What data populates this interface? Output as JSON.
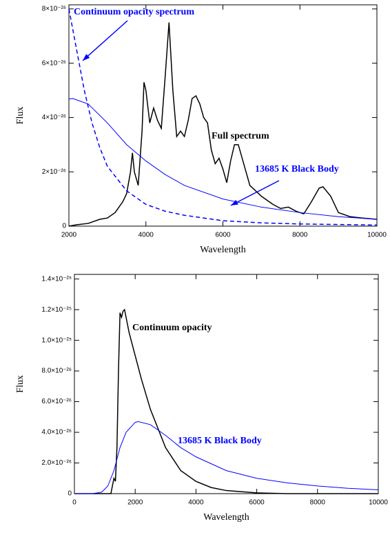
{
  "chart_data": [
    {
      "type": "line",
      "xlabel": "Wavelength",
      "ylabel": "Flux",
      "xlim": [
        2000,
        10000
      ],
      "xticks": [
        2000,
        4000,
        6000,
        8000,
        10000
      ],
      "ylim": [
        0,
        8.15e-26
      ],
      "yticks": [
        0,
        {
          "value": 2e-26,
          "label": "2×10⁻²⁶"
        },
        {
          "value": 4e-26,
          "label": "4×10⁻²⁶"
        },
        {
          "value": 6e-26,
          "label": "6×10⁻²⁶"
        },
        {
          "value": 8e-26,
          "label": "8×10⁻²⁶"
        }
      ],
      "series": [
        {
          "color": "#000000",
          "width": 1.5,
          "dash": false,
          "x": [
            2000,
            2200,
            2500,
            2800,
            3000,
            3200,
            3400,
            3500,
            3600,
            3650,
            3700,
            3800,
            3900,
            3950,
            4000,
            4100,
            4200,
            4300,
            4400,
            4500,
            4600,
            4700,
            4800,
            4900,
            5000,
            5100,
            5200,
            5300,
            5400,
            5500,
            5600,
            5700,
            5800,
            5900,
            6000,
            6100,
            6200,
            6300,
            6400,
            6500,
            6700,
            7000,
            7300,
            7500,
            7700,
            7900,
            8100,
            8300,
            8500,
            8600,
            8800,
            9000,
            9300,
            9600,
            10000
          ],
          "values": [
            0,
            5e-28,
            1e-27,
            2.5e-27,
            3e-27,
            5e-27,
            9e-27,
            1.2e-26,
            2e-26,
            2.7e-26,
            2e-26,
            1.5e-26,
            3.5e-26,
            5.3e-26,
            5e-26,
            3.8e-26,
            4.35e-26,
            3.9e-26,
            3.6e-26,
            5.5e-26,
            7.5e-26,
            5e-26,
            3.3e-26,
            3.5e-26,
            3.3e-26,
            3.9e-26,
            4.7e-26,
            4.8e-26,
            4.5e-26,
            4e-26,
            3.8e-26,
            2.8e-26,
            2.3e-26,
            2.5e-26,
            2.1e-26,
            1.6e-26,
            2.4e-26,
            3e-26,
            3e-26,
            2.5e-26,
            1.5e-26,
            1.1e-26,
            8e-27,
            6.5e-27,
            7e-27,
            5.5e-27,
            4.5e-27,
            9e-27,
            1.4e-26,
            1.45e-26,
            1.1e-26,
            5e-27,
            3.5e-27,
            3e-27,
            2.5e-27
          ]
        },
        {
          "color": "#0000ff",
          "width": 1,
          "dash": false,
          "x": [
            2000,
            2100,
            2500,
            3000,
            3500,
            4000,
            4500,
            5000,
            6000,
            7000,
            8000,
            9000,
            10000
          ],
          "values": [
            4.68e-26,
            4.7e-26,
            4.5e-26,
            3.8e-26,
            3e-26,
            2.4e-26,
            1.9e-26,
            1.5e-26,
            1e-26,
            7e-27,
            5e-27,
            3.5e-27,
            2.5e-27
          ]
        },
        {
          "color": "#0000ff",
          "width": 1.5,
          "dash": true,
          "x": [
            2000,
            2200,
            2400,
            2600,
            2800,
            3000,
            3500,
            4000,
            4500,
            5000,
            6000,
            7000,
            8000,
            10000
          ],
          "values": [
            8e-26,
            6.5e-26,
            5e-26,
            3.8e-26,
            2.9e-26,
            2.2e-26,
            1.3e-26,
            8e-27,
            5.5e-27,
            4e-27,
            2e-27,
            1.2e-27,
            8e-28,
            4e-28
          ]
        }
      ],
      "annotations": [
        {
          "text": "Continuum opacity spectrum",
          "color": "#0000ff"
        },
        {
          "text": "Full spectrum",
          "color": "#000000"
        },
        {
          "text": "13685 K Black Body",
          "color": "#0000ff"
        }
      ]
    },
    {
      "type": "line",
      "xlabel": "Wavelength",
      "ylabel": "Flux",
      "xlim": [
        0,
        10000
      ],
      "xticks": [
        0,
        2000,
        4000,
        6000,
        8000,
        10000
      ],
      "ylim": [
        0,
        1.43e-25
      ],
      "yticks": [
        0,
        {
          "value": 2e-26,
          "label": "2.0×10⁻²⁶"
        },
        {
          "value": 4e-26,
          "label": "4.0×10⁻²⁶"
        },
        {
          "value": 6e-26,
          "label": "6.0×10⁻²⁶"
        },
        {
          "value": 8e-26,
          "label": "8.0×10⁻²⁶"
        },
        {
          "value": 1e-25,
          "label": "1.0×10⁻²⁵"
        },
        {
          "value": 1.2e-25,
          "label": "1.2×10⁻²⁵"
        },
        {
          "value": 1.4e-25,
          "label": "1.4×10⁻²⁵"
        }
      ],
      "series": [
        {
          "color": "#000000",
          "width": 1.5,
          "dash": false,
          "x": [
            0,
            1200,
            1250,
            1300,
            1350,
            1400,
            1450,
            1500,
            1550,
            1600,
            1650,
            1700,
            1800,
            2000,
            2200,
            2500,
            3000,
            3500,
            4000,
            4500,
            5000,
            6000,
            7000,
            10000
          ],
          "values": [
            0,
            0,
            5e-27,
            1e-26,
            8e-27,
            3e-26,
            8e-26,
            1.18e-25,
            1.15e-25,
            1.19e-25,
            1.2e-25,
            1.15e-25,
            1.05e-25,
            9e-26,
            7.5e-26,
            5.5e-26,
            3e-26,
            1.5e-26,
            8e-27,
            4e-27,
            2e-27,
            5e-28,
            0,
            0
          ]
        },
        {
          "color": "#0000ff",
          "width": 1,
          "dash": false,
          "x": [
            0,
            600,
            900,
            1100,
            1300,
            1500,
            1700,
            2000,
            2100,
            2500,
            3000,
            3500,
            4000,
            5000,
            6000,
            7000,
            8000,
            9000,
            10000
          ],
          "values": [
            0,
            0,
            1e-27,
            5e-27,
            1.5e-26,
            3e-26,
            4e-26,
            4.65e-26,
            4.7e-26,
            4.5e-26,
            3.8e-26,
            3e-26,
            2.4e-26,
            1.5e-26,
            1e-26,
            7e-27,
            5e-27,
            3.5e-27,
            2.5e-27
          ]
        }
      ],
      "annotations": [
        {
          "text": "Continuum opacity",
          "color": "#000000"
        },
        {
          "text": "13685 K Black Body",
          "color": "#0000ff"
        }
      ]
    }
  ]
}
